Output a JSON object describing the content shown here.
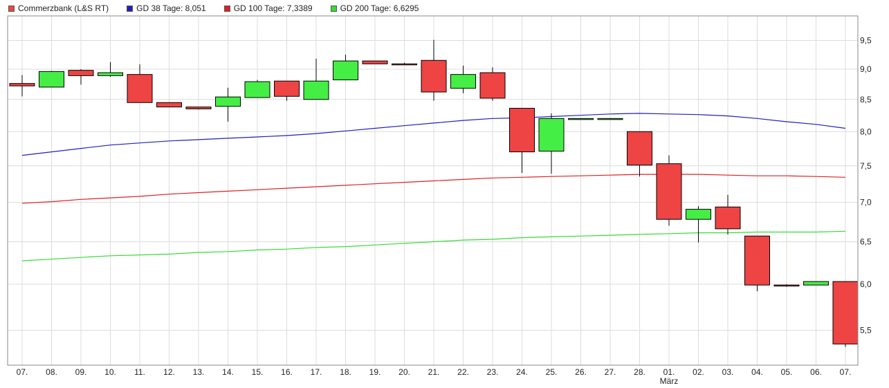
{
  "legend": {
    "stock": {
      "label": "Commerzbank (L&S RT)",
      "color": "#ee4444"
    },
    "gd38": {
      "label": "GD 38 Tage: 8,051",
      "color": "#1f1fbf"
    },
    "gd100": {
      "label": "GD 100 Tage: 7,3389",
      "color": "#e02020"
    },
    "gd200": {
      "label": "GD 200 Tage: 6,6295",
      "color": "#33dd33"
    }
  },
  "chart_data": {
    "type": "candlestick",
    "title": "",
    "xlabel": "",
    "ylabel": "",
    "ylim": [
      5.15,
      9.95
    ],
    "y_scale": "log",
    "grid": true,
    "legend_position": "top-left",
    "y_axis_side": "right",
    "yticks": [
      5.5,
      6.0,
      6.5,
      7.0,
      7.5,
      8.0,
      8.5,
      9.0,
      9.5
    ],
    "ytick_labels": [
      "5,5",
      "6,0",
      "6,5",
      "7,0",
      "7,5",
      "8,0",
      "8,5",
      "9,0",
      "9,5"
    ],
    "categories": [
      "07.",
      "08.",
      "09.",
      "10.",
      "11.",
      "12.",
      "13.",
      "14.",
      "15.",
      "16.",
      "17.",
      "18.",
      "19.",
      "20.",
      "21.",
      "22.",
      "23.",
      "24.",
      "25.",
      "26.",
      "27.",
      "28.",
      "01.",
      "02.",
      "03.",
      "04.",
      "05.",
      "06.",
      "07."
    ],
    "x_sublabels": [
      {
        "index": 22,
        "label": "März"
      }
    ],
    "candles": [
      {
        "open": 8.76,
        "close": 8.72,
        "high": 8.9,
        "low": 8.55
      },
      {
        "open": 8.7,
        "close": 8.96,
        "high": 8.97,
        "low": 8.7
      },
      {
        "open": 8.98,
        "close": 8.89,
        "high": 9.0,
        "low": 8.74
      },
      {
        "open": 8.89,
        "close": 8.94,
        "high": 9.12,
        "low": 8.87
      },
      {
        "open": 8.91,
        "close": 8.45,
        "high": 9.08,
        "low": 8.45
      },
      {
        "open": 8.45,
        "close": 8.38,
        "high": 8.45,
        "low": 8.38
      },
      {
        "open": 8.38,
        "close": 8.35,
        "high": 8.38,
        "low": 8.34
      },
      {
        "open": 8.39,
        "close": 8.54,
        "high": 8.69,
        "low": 8.15
      },
      {
        "open": 8.53,
        "close": 8.79,
        "high": 8.82,
        "low": 8.53
      },
      {
        "open": 8.8,
        "close": 8.55,
        "high": 8.8,
        "low": 8.48
      },
      {
        "open": 8.5,
        "close": 8.8,
        "high": 9.18,
        "low": 8.5
      },
      {
        "open": 8.82,
        "close": 9.14,
        "high": 9.25,
        "low": 8.82
      },
      {
        "open": 9.14,
        "close": 9.09,
        "high": 9.14,
        "low": 9.09
      },
      {
        "open": 9.09,
        "close": 9.08,
        "high": 9.11,
        "low": 9.07
      },
      {
        "open": 9.15,
        "close": 8.62,
        "high": 9.51,
        "low": 8.48
      },
      {
        "open": 8.68,
        "close": 8.91,
        "high": 9.06,
        "low": 8.6
      },
      {
        "open": 8.94,
        "close": 8.52,
        "high": 9.03,
        "low": 8.48
      },
      {
        "open": 8.36,
        "close": 7.7,
        "high": 8.36,
        "low": 7.4
      },
      {
        "open": 7.71,
        "close": 8.2,
        "high": 8.28,
        "low": 7.39
      },
      {
        "open": 8.2,
        "close": 8.2,
        "high": 8.2,
        "low": 8.2
      },
      {
        "open": 8.2,
        "close": 8.2,
        "high": 8.2,
        "low": 8.2
      },
      {
        "open": 8.0,
        "close": 7.51,
        "high": 8.0,
        "low": 7.35
      },
      {
        "open": 7.53,
        "close": 6.78,
        "high": 7.65,
        "low": 6.7
      },
      {
        "open": 6.78,
        "close": 6.91,
        "high": 6.95,
        "low": 6.49
      },
      {
        "open": 6.94,
        "close": 6.66,
        "high": 7.1,
        "low": 6.59
      },
      {
        "open": 6.57,
        "close": 5.99,
        "high": 6.57,
        "low": 5.92
      },
      {
        "open": 5.99,
        "close": 5.98,
        "high": 6.0,
        "low": 5.97
      },
      {
        "open": 5.99,
        "close": 6.03,
        "high": 6.03,
        "low": 5.99
      },
      {
        "open": 6.03,
        "close": 5.36,
        "high": 6.03,
        "low": 5.33
      }
    ],
    "series": [
      {
        "name": "GD 38 Tage",
        "color": "#1f1fbf",
        "values": [
          7.65,
          7.7,
          7.75,
          7.8,
          7.83,
          7.86,
          7.88,
          7.9,
          7.92,
          7.94,
          7.97,
          8.01,
          8.05,
          8.09,
          8.13,
          8.17,
          8.2,
          8.21,
          8.23,
          8.25,
          8.27,
          8.28,
          8.27,
          8.26,
          8.24,
          8.2,
          8.15,
          8.11,
          8.05
        ]
      },
      {
        "name": "GD 100 Tage",
        "color": "#e02020",
        "values": [
          6.99,
          7.01,
          7.04,
          7.06,
          7.08,
          7.11,
          7.13,
          7.15,
          7.17,
          7.19,
          7.21,
          7.23,
          7.25,
          7.27,
          7.29,
          7.31,
          7.33,
          7.34,
          7.35,
          7.36,
          7.37,
          7.38,
          7.38,
          7.38,
          7.37,
          7.36,
          7.36,
          7.35,
          7.34
        ]
      },
      {
        "name": "GD 200 Tage",
        "color": "#33dd33",
        "values": [
          6.27,
          6.29,
          6.31,
          6.33,
          6.34,
          6.35,
          6.37,
          6.38,
          6.4,
          6.41,
          6.43,
          6.44,
          6.46,
          6.48,
          6.5,
          6.52,
          6.53,
          6.55,
          6.56,
          6.57,
          6.58,
          6.59,
          6.6,
          6.61,
          6.61,
          6.62,
          6.62,
          6.62,
          6.63
        ]
      }
    ],
    "colors": {
      "up": "#44ee44",
      "down": "#ee4444",
      "wick": "#000000"
    }
  }
}
